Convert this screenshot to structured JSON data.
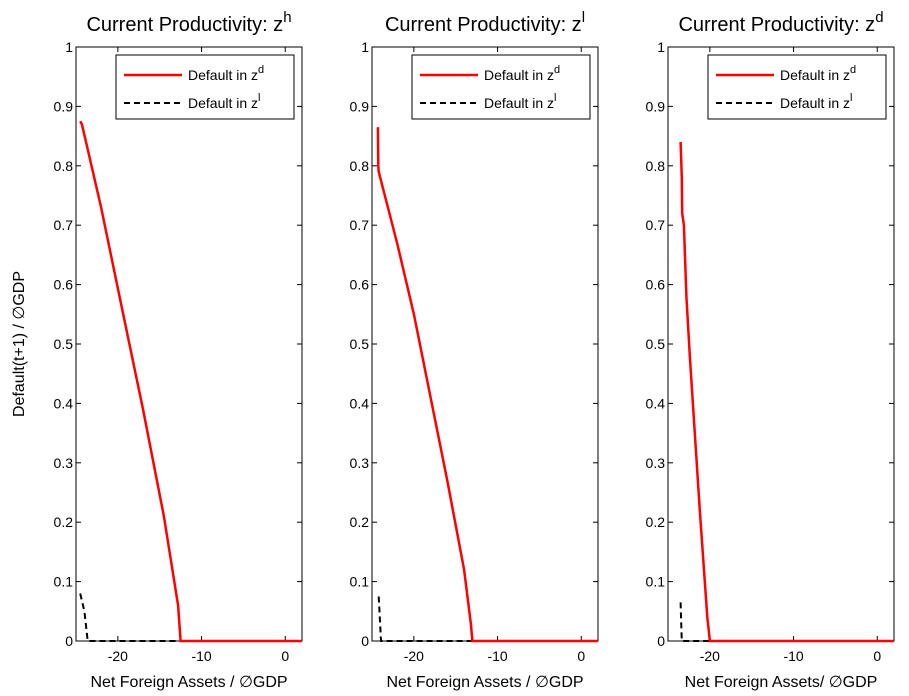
{
  "colors": {
    "default_zd": "#ff0000",
    "default_zl": "#000000",
    "axes": "#000000",
    "background": "#ffffff"
  },
  "chart_data": [
    {
      "type": "line",
      "title": "Current Productivity: z",
      "title_superscript": "h",
      "xlabel": "Net Foreign Assets / ∅GDP",
      "ylabel": "Default(t+1) / ∅GDP",
      "xlim": [
        -25,
        2
      ],
      "ylim": [
        0,
        1
      ],
      "xticks": [
        -20,
        -10,
        0
      ],
      "yticks": [
        0,
        0.1,
        0.2,
        0.3,
        0.4,
        0.5,
        0.6,
        0.7,
        0.8,
        0.9,
        1
      ],
      "grid": false,
      "legend_position": "top-right",
      "series": [
        {
          "name": "Default in z",
          "name_superscript": "d",
          "style": "solid",
          "color": "#ff0000",
          "x": [
            -24.5,
            -24.3,
            -22.0,
            -19.5,
            -17.0,
            -14.5,
            -12.8,
            -12.5,
            2.0
          ],
          "y": [
            0.875,
            0.87,
            0.73,
            0.56,
            0.39,
            0.21,
            0.06,
            0.0,
            0.0
          ]
        },
        {
          "name": "Default in z",
          "name_superscript": "l",
          "style": "dashed",
          "color": "#000000",
          "x": [
            -24.5,
            -24.0,
            -23.6,
            -23.5,
            -12.5
          ],
          "y": [
            0.08,
            0.05,
            0.0,
            0.0,
            0.0
          ]
        }
      ]
    },
    {
      "type": "line",
      "title": "Current Productivity: z",
      "title_superscript": "l",
      "xlabel": "Net Foreign Assets / ∅GDP",
      "ylabel": "",
      "xlim": [
        -25,
        2
      ],
      "ylim": [
        0,
        1
      ],
      "xticks": [
        -20,
        -10,
        0
      ],
      "yticks": [
        0,
        0.1,
        0.2,
        0.3,
        0.4,
        0.5,
        0.6,
        0.7,
        0.8,
        0.9,
        1
      ],
      "grid": false,
      "legend_position": "top-right",
      "series": [
        {
          "name": "Default in z",
          "name_superscript": "d",
          "style": "solid",
          "color": "#ff0000",
          "x": [
            -24.3,
            -24.25,
            -24.2,
            -22.0,
            -20.0,
            -18.0,
            -16.0,
            -14.0,
            -13.2,
            -13.0,
            2.0
          ],
          "y": [
            0.865,
            0.8,
            0.79,
            0.67,
            0.55,
            0.41,
            0.27,
            0.12,
            0.03,
            0.0,
            0.0
          ]
        },
        {
          "name": "Default in z",
          "name_superscript": "l",
          "style": "dashed",
          "color": "#000000",
          "x": [
            -24.2,
            -24.0,
            -23.95,
            -23.9,
            -13.0
          ],
          "y": [
            0.075,
            0.02,
            0.005,
            0.0,
            0.0
          ]
        }
      ]
    },
    {
      "type": "line",
      "title": "Current Productivity: z",
      "title_superscript": "d",
      "xlabel": "Net Foreign Assets/ ∅GDP",
      "ylabel": "",
      "xlim": [
        -25,
        2
      ],
      "ylim": [
        0,
        1
      ],
      "xticks": [
        -20,
        -10,
        0
      ],
      "yticks": [
        0,
        0.1,
        0.2,
        0.3,
        0.4,
        0.5,
        0.6,
        0.7,
        0.8,
        0.9,
        1
      ],
      "grid": false,
      "legend_position": "top-right",
      "series": [
        {
          "name": "Default in z",
          "name_superscript": "d",
          "style": "solid",
          "color": "#ff0000",
          "x": [
            -23.5,
            -23.35,
            -23.3,
            -23.1,
            -22.8,
            -22.4,
            -21.8,
            -21.2,
            -20.6,
            -20.3,
            -20.0,
            2.0
          ],
          "y": [
            0.84,
            0.78,
            0.72,
            0.7,
            0.58,
            0.48,
            0.35,
            0.22,
            0.1,
            0.04,
            0.0,
            0.0
          ]
        },
        {
          "name": "Default in z",
          "name_superscript": "l",
          "style": "dashed",
          "color": "#000000",
          "x": [
            -23.5,
            -23.4,
            -23.35,
            -20.0
          ],
          "y": [
            0.065,
            0.02,
            0.0,
            0.0
          ]
        }
      ]
    }
  ]
}
